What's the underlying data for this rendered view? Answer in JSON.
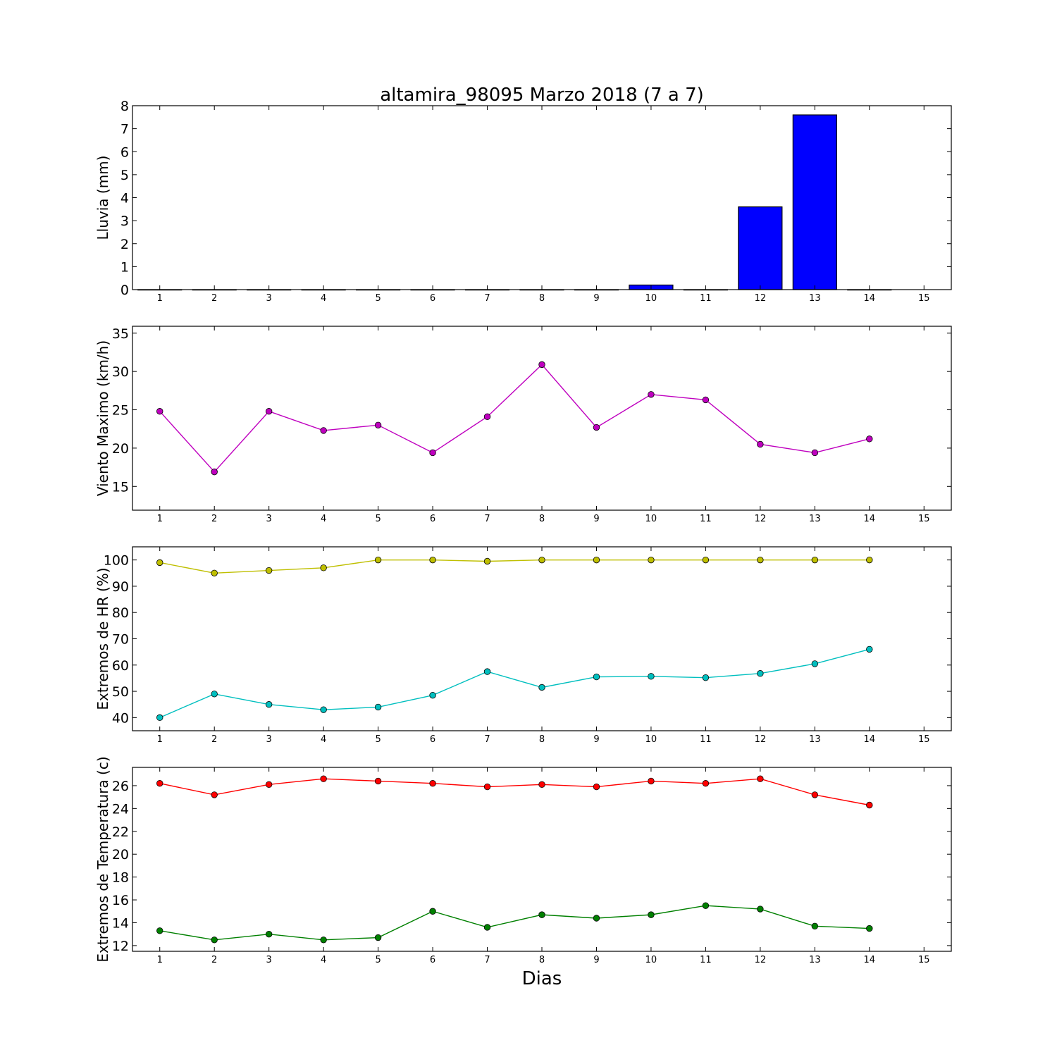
{
  "figure": {
    "title": "altamira_98095 Marzo 2018  (7 a 7)",
    "xlabel": "Dias"
  },
  "chart_data": [
    {
      "type": "bar",
      "ylabel": "Lluvia (mm)",
      "xlim": [
        0.5,
        15.5
      ],
      "ylim": [
        0,
        8
      ],
      "xticks": [
        1,
        2,
        3,
        4,
        5,
        6,
        7,
        8,
        9,
        10,
        11,
        12,
        13,
        14,
        15
      ],
      "yticks": [
        0,
        1,
        2,
        3,
        4,
        5,
        6,
        7,
        8
      ],
      "grid": false,
      "series": [
        {
          "x": [
            1,
            2,
            3,
            4,
            5,
            6,
            7,
            8,
            9,
            10,
            11,
            12,
            13,
            14
          ],
          "values": [
            0,
            0,
            0,
            0,
            0,
            0,
            0,
            0,
            0,
            0.2,
            0,
            3.6,
            7.6,
            0
          ],
          "color": "#0000ff"
        }
      ]
    },
    {
      "type": "line",
      "ylabel": "Viento Maximo (km/h)",
      "xlim": [
        0.5,
        15.5
      ],
      "ylim": [
        11.9,
        35.9
      ],
      "xticks": [
        1,
        2,
        3,
        4,
        5,
        6,
        7,
        8,
        9,
        10,
        11,
        12,
        13,
        14,
        15
      ],
      "yticks": [
        15,
        20,
        25,
        30,
        35
      ],
      "grid": false,
      "series": [
        {
          "x": [
            1,
            2,
            3,
            4,
            5,
            6,
            7,
            8,
            9,
            10,
            11,
            12,
            13,
            14
          ],
          "values": [
            24.8,
            16.9,
            24.8,
            22.3,
            23.0,
            19.4,
            24.1,
            30.9,
            22.7,
            27.0,
            26.3,
            20.5,
            19.4,
            21.2
          ],
          "color": "#bf00bf"
        }
      ]
    },
    {
      "type": "line",
      "ylabel": "Extremos de HR (%)",
      "xlim": [
        0.5,
        15.5
      ],
      "ylim": [
        35,
        105
      ],
      "xticks": [
        1,
        2,
        3,
        4,
        5,
        6,
        7,
        8,
        9,
        10,
        11,
        12,
        13,
        14,
        15
      ],
      "yticks": [
        40,
        50,
        60,
        70,
        80,
        90,
        100
      ],
      "grid": false,
      "series": [
        {
          "x": [
            1,
            2,
            3,
            4,
            5,
            6,
            7,
            8,
            9,
            10,
            11,
            12,
            13,
            14
          ],
          "values": [
            99,
            95,
            96,
            97,
            100,
            100,
            99.5,
            100,
            100,
            100,
            100,
            100,
            100,
            100
          ],
          "color": "#bfbf00"
        },
        {
          "x": [
            1,
            2,
            3,
            4,
            5,
            6,
            7,
            8,
            9,
            10,
            11,
            12,
            13,
            14
          ],
          "values": [
            40,
            49,
            45,
            43,
            44,
            48.5,
            57.5,
            51.5,
            55.5,
            55.7,
            55.2,
            56.8,
            60.5,
            66
          ],
          "color": "#00bfbf"
        }
      ]
    },
    {
      "type": "line",
      "ylabel": "Extremos de Temperatura (c)",
      "xlim": [
        0.5,
        15.5
      ],
      "ylim": [
        11.5,
        27.6
      ],
      "xticks": [
        1,
        2,
        3,
        4,
        5,
        6,
        7,
        8,
        9,
        10,
        11,
        12,
        13,
        14,
        15
      ],
      "yticks": [
        12,
        14,
        16,
        18,
        20,
        22,
        24,
        26
      ],
      "grid": false,
      "series": [
        {
          "x": [
            1,
            2,
            3,
            4,
            5,
            6,
            7,
            8,
            9,
            10,
            11,
            12,
            13,
            14
          ],
          "values": [
            26.2,
            25.2,
            26.1,
            26.6,
            26.4,
            26.2,
            25.9,
            26.1,
            25.9,
            26.4,
            26.2,
            26.6,
            25.2,
            24.3
          ],
          "color": "#ff0000"
        },
        {
          "x": [
            1,
            2,
            3,
            4,
            5,
            6,
            7,
            8,
            9,
            10,
            11,
            12,
            13,
            14
          ],
          "values": [
            13.3,
            12.5,
            13.0,
            12.5,
            12.7,
            15.0,
            13.6,
            14.7,
            14.4,
            14.7,
            15.5,
            15.2,
            13.7,
            13.5
          ],
          "color": "#008000"
        }
      ]
    }
  ]
}
